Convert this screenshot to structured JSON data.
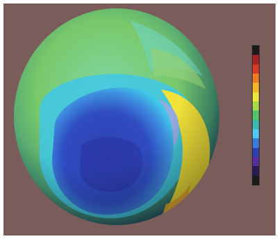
{
  "image": {
    "background_color": "#7a5c5a",
    "frame_color": "#ffffff",
    "globe_palette": {
      "hole_core": "#2f3fb0",
      "hole_edge": "#3f8fe0",
      "ring_cyan": "#3fc8e8",
      "mid_green": "#7fcf6a",
      "ozone_yellow": "#f2e23a",
      "ozone_orange": "#f0b030",
      "pale_lavender": "#9aa8e0"
    },
    "color_scale": [
      "#1a1a1a",
      "#a42424",
      "#d63a22",
      "#ef7a22",
      "#f3b52a",
      "#eee43a",
      "#a6d84a",
      "#55c36a",
      "#3fb8b0",
      "#53c8ec",
      "#3f7ad6",
      "#2f3fb0",
      "#5a2d9f",
      "#2a1a4f",
      "#1a1a1a"
    ]
  }
}
